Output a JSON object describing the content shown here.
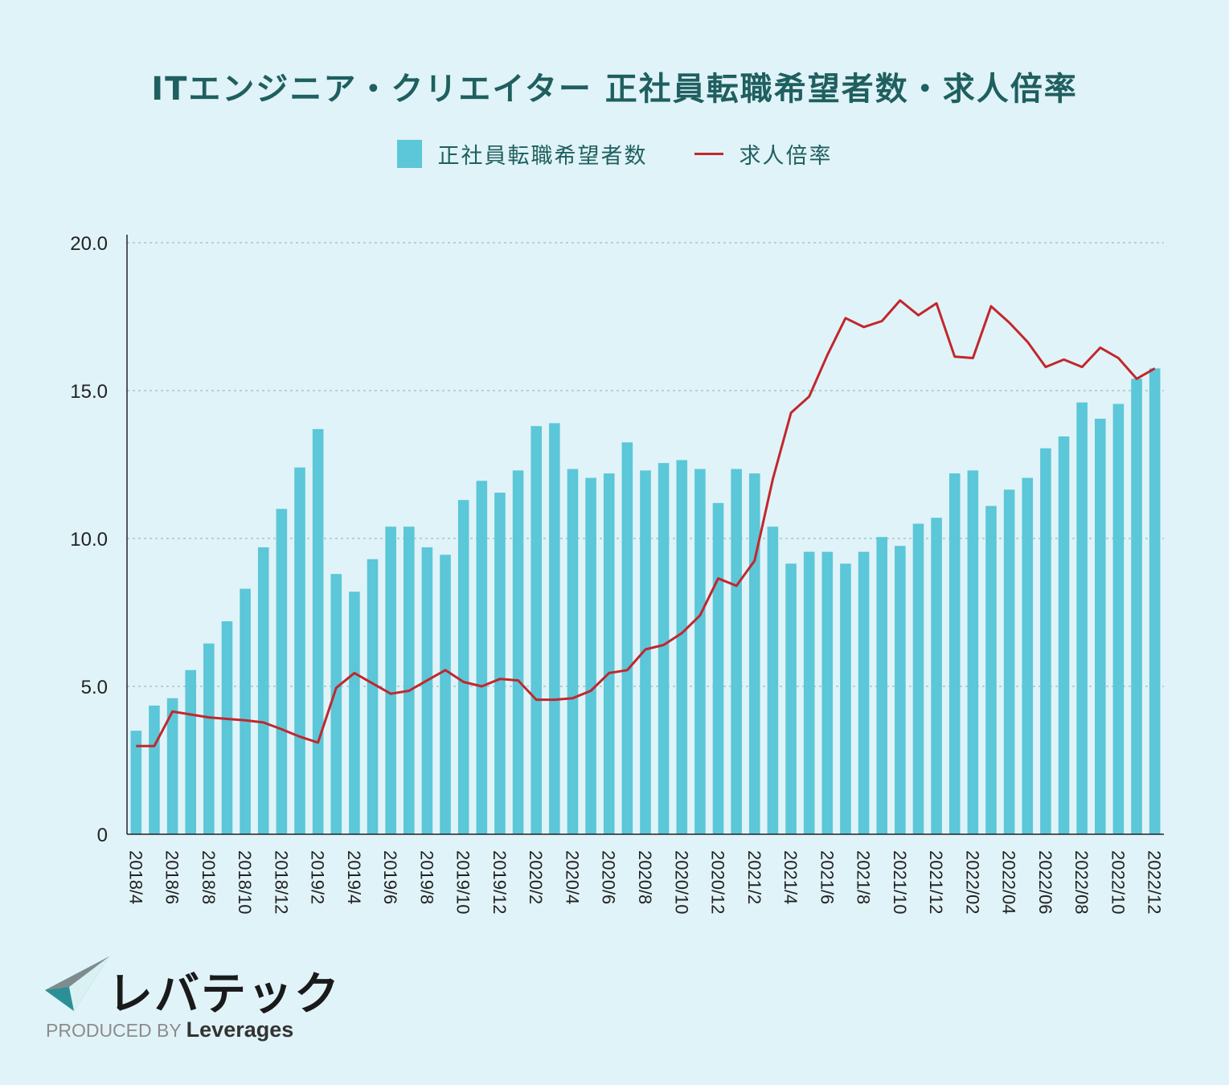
{
  "chart_data": {
    "type": "bar",
    "title": "ITエンジニア・クリエイター 正社員転職希望者数・求人倍率",
    "legend": {
      "bar": "正社員転職希望者数",
      "line": "求人倍率"
    },
    "ylim": [
      0,
      20
    ],
    "yticks": [
      "0",
      "5.0",
      "10.0",
      "15.0",
      "20.0"
    ],
    "ytick_values": [
      0,
      5,
      10,
      15,
      20
    ],
    "months": [
      "2018/4",
      "2018/5",
      "2018/6",
      "2018/7",
      "2018/8",
      "2018/9",
      "2018/10",
      "2018/11",
      "2018/12",
      "2019/1",
      "2019/2",
      "2019/3",
      "2019/4",
      "2019/5",
      "2019/6",
      "2019/7",
      "2019/8",
      "2019/9",
      "2019/10",
      "2019/11",
      "2019/12",
      "2020/1",
      "2020/2",
      "2020/3",
      "2020/4",
      "2020/5",
      "2020/6",
      "2020/7",
      "2020/8",
      "2020/9",
      "2020/10",
      "2020/11",
      "2020/12",
      "2021/1",
      "2021/2",
      "2021/3",
      "2021/4",
      "2021/5",
      "2021/6",
      "2021/7",
      "2021/8",
      "2021/9",
      "2021/10",
      "2021/11",
      "2021/12",
      "2022/01",
      "2022/02",
      "2022/03",
      "2022/04",
      "2022/05",
      "2022/06",
      "2022/07",
      "2022/08",
      "2022/09",
      "2022/10",
      "2022/11",
      "2022/12"
    ],
    "tick_labels": [
      "2018/4",
      "",
      "2018/6",
      "",
      "2018/8",
      "",
      "2018/10",
      "",
      "2018/12",
      "",
      "2019/2",
      "",
      "2019/4",
      "",
      "2019/6",
      "",
      "2019/8",
      "",
      "2019/10",
      "",
      "2019/12",
      "",
      "2020/2",
      "",
      "2020/4",
      "",
      "2020/6",
      "",
      "2020/8",
      "",
      "2020/10",
      "",
      "2020/12",
      "",
      "2021/2",
      "",
      "2021/4",
      "",
      "2021/6",
      "",
      "2021/8",
      "",
      "2021/10",
      "",
      "2021/12",
      "",
      "2022/02",
      "",
      "2022/04",
      "",
      "2022/06",
      "",
      "2022/08",
      "",
      "2022/10",
      "",
      "2022/12"
    ],
    "series": [
      {
        "name": "正社員転職希望者数",
        "type": "bar",
        "color": "#5bc7d8",
        "values": [
          3.5,
          4.35,
          4.6,
          5.55,
          6.45,
          7.2,
          8.3,
          9.7,
          11.0,
          12.4,
          13.7,
          8.8,
          8.2,
          9.3,
          10.4,
          10.4,
          9.7,
          9.45,
          11.3,
          11.95,
          11.55,
          12.3,
          13.8,
          13.9,
          12.35,
          12.05,
          12.2,
          13.25,
          12.3,
          12.55,
          12.65,
          12.35,
          11.2,
          12.35,
          12.2,
          10.4,
          9.15,
          9.55,
          9.55,
          9.15,
          9.55,
          10.05,
          9.75,
          10.5,
          10.7,
          12.2,
          12.3,
          11.1,
          11.65,
          12.05,
          13.05,
          13.45,
          14.6,
          14.05,
          14.55,
          15.4,
          15.75
        ]
      },
      {
        "name": "求人倍率",
        "type": "line",
        "color": "#c1272d",
        "values": [
          2.98,
          2.98,
          4.15,
          4.05,
          3.95,
          3.9,
          3.85,
          3.78,
          3.55,
          3.3,
          3.1,
          4.95,
          5.45,
          5.1,
          4.75,
          4.85,
          5.2,
          5.55,
          5.15,
          5.0,
          5.25,
          5.2,
          4.55,
          4.55,
          4.6,
          4.85,
          5.45,
          5.55,
          6.25,
          6.4,
          6.8,
          7.4,
          8.65,
          8.4,
          9.25,
          12.0,
          14.25,
          14.8,
          16.2,
          17.45,
          17.15,
          17.35,
          18.05,
          17.55,
          17.95,
          16.15,
          16.1,
          17.85,
          17.3,
          16.65,
          15.8,
          16.05,
          15.8,
          16.45,
          16.1,
          15.4,
          15.75
        ]
      }
    ]
  },
  "branding": {
    "logo_text": "レバテック",
    "produced_by": "PRODUCED BY",
    "brand": "Leverages"
  }
}
